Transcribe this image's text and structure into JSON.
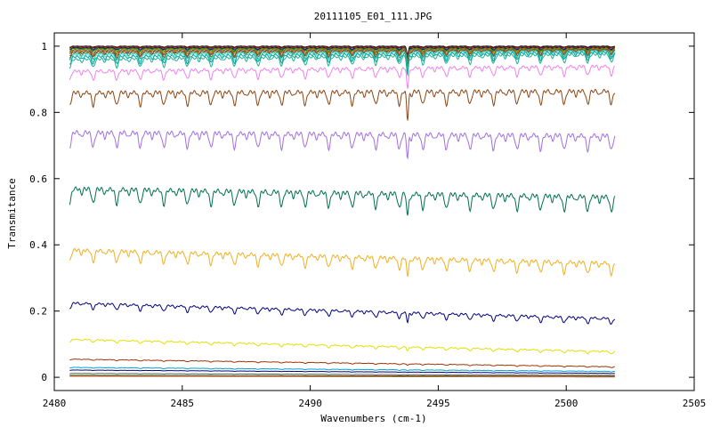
{
  "chart_data": {
    "type": "line",
    "title": "20111105_E01_111.JPG",
    "xlabel": "Wavenumbers (cm-1)",
    "ylabel": "Transmitance",
    "xlim": [
      2480,
      2505
    ],
    "ylim": [
      -0.04,
      1.04
    ],
    "x_range_of_data": [
      2480.6,
      2501.9
    ],
    "grid": false,
    "legend": "none",
    "x_ticks": [
      2480,
      2485,
      2490,
      2495,
      2500,
      2505
    ],
    "y_ticks": [
      0,
      0.2,
      0.4,
      0.6,
      0.8,
      1
    ],
    "x_tick_labels": [
      "2480",
      "2485",
      "2490",
      "2495",
      "2500",
      "2505"
    ],
    "y_tick_labels": [
      "0",
      "0.2",
      "0.4",
      "0.6",
      "0.8",
      "1"
    ],
    "absorption_line_spacing_cm-1": 0.92,
    "strong_line_position": 2493.8,
    "series": [
      {
        "color": "#000000",
        "start": 1.0,
        "end": 1.0,
        "depth": 0.003
      },
      {
        "color": "#a00000",
        "start": 0.999,
        "end": 0.998,
        "depth": 0.004
      },
      {
        "color": "#606000",
        "start": 0.997,
        "end": 0.996,
        "depth": 0.005
      },
      {
        "color": "#0000c0",
        "start": 0.995,
        "end": 0.995,
        "depth": 0.006
      },
      {
        "color": "#008000",
        "start": 0.993,
        "end": 0.994,
        "depth": 0.008
      },
      {
        "color": "#808000",
        "start": 0.99,
        "end": 0.993,
        "depth": 0.01
      },
      {
        "color": "#c06000",
        "start": 0.988,
        "end": 0.991,
        "depth": 0.012
      },
      {
        "color": "#606060",
        "start": 0.985,
        "end": 0.99,
        "depth": 0.014
      },
      {
        "color": "#8b4513",
        "start": 0.982,
        "end": 0.989,
        "depth": 0.016
      },
      {
        "color": "#2e8b57",
        "start": 0.978,
        "end": 0.987,
        "depth": 0.018
      },
      {
        "color": "#40e0d0",
        "start": 0.974,
        "end": 0.985,
        "depth": 0.02
      },
      {
        "color": "#00a0a0",
        "start": 0.968,
        "end": 0.982,
        "depth": 0.022
      },
      {
        "color": "#20b090",
        "start": 0.96,
        "end": 0.976,
        "depth": 0.025
      },
      {
        "color": "#ee82ee",
        "start": 0.925,
        "end": 0.94,
        "depth": 0.028
      },
      {
        "color": "#8b4513",
        "start": 0.86,
        "end": 0.865,
        "depth": 0.04
      },
      {
        "color": "#a070e0",
        "start": 0.74,
        "end": 0.73,
        "depth": 0.045
      },
      {
        "color": "#007050",
        "start": 0.57,
        "end": 0.545,
        "depth": 0.045
      },
      {
        "color": "#f0b020",
        "start": 0.385,
        "end": 0.345,
        "depth": 0.035
      },
      {
        "color": "#000080",
        "start": 0.225,
        "end": 0.178,
        "depth": 0.018
      },
      {
        "color": "#e0e000",
        "start": 0.115,
        "end": 0.078,
        "depth": 0.008
      },
      {
        "color": "#a03000",
        "start": 0.055,
        "end": 0.032,
        "depth": 0.003
      },
      {
        "color": "#00a0d0",
        "start": 0.03,
        "end": 0.018,
        "depth": 0.002
      },
      {
        "color": "#000080",
        "start": 0.022,
        "end": 0.012,
        "depth": 0.001
      },
      {
        "color": "#606060",
        "start": 0.012,
        "end": 0.006,
        "depth": 0.001
      },
      {
        "color": "#008000",
        "start": 0.006,
        "end": 0.003,
        "depth": 0.0
      },
      {
        "color": "#ff4040",
        "start": 0.003,
        "end": 0.001,
        "depth": 0.0
      }
    ]
  }
}
